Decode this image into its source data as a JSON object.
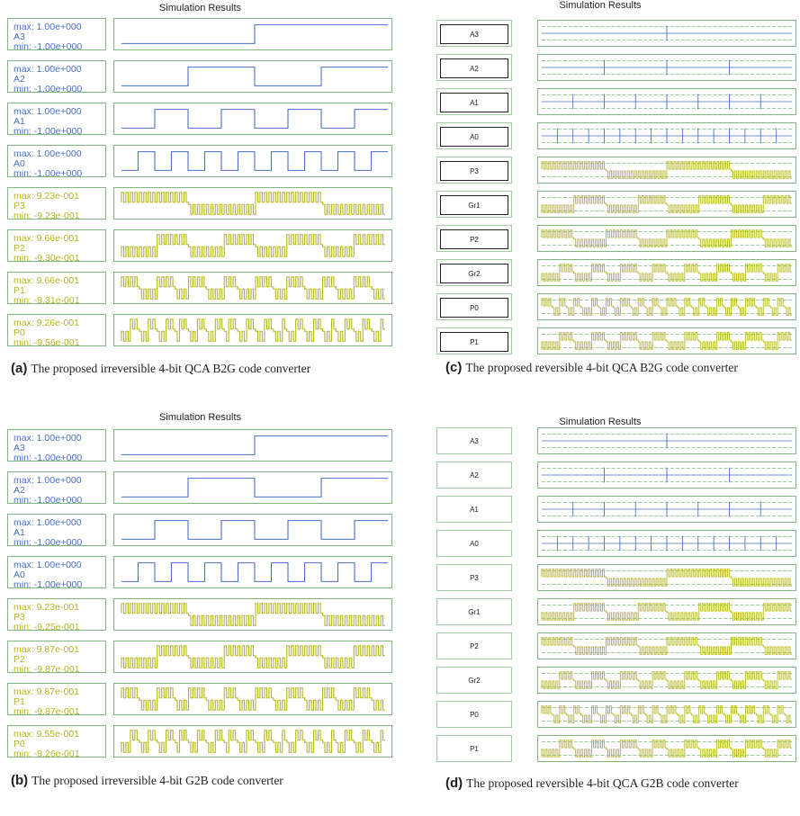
{
  "chart_data": [
    {
      "type": "line",
      "title": "Simulation Results",
      "caption_letter": "(a)",
      "caption_text": "The proposed irreversible 4-bit QCA B2G code converter",
      "signals": [
        {
          "name": "A3",
          "max": "max: 1.00e+000",
          "min": "min: -1.00e+000",
          "kind": "input",
          "color": "#4a6fc4",
          "period": 8
        },
        {
          "name": "A2",
          "max": "max: 1.00e+000",
          "min": "min: -1.00e+000",
          "kind": "input",
          "color": "#4a6fc4",
          "period": 4
        },
        {
          "name": "A1",
          "max": "max: 1.00e+000",
          "min": "min: -1.00e+000",
          "kind": "input",
          "color": "#4a6fc4",
          "period": 2
        },
        {
          "name": "A0",
          "max": "max: 1.00e+000",
          "min": "min: -1.00e+000",
          "kind": "input",
          "color": "#4a6fc4",
          "period": 1
        },
        {
          "name": "P3",
          "max": "max: 9.23e-001",
          "min": "min: -9.23e-001",
          "kind": "output",
          "color": "#b5b520",
          "period": 8
        },
        {
          "name": "P2",
          "max": "max: 9.66e-001",
          "min": "min: -9.30e-001",
          "kind": "output",
          "color": "#b5b520",
          "period": 4
        },
        {
          "name": "P1",
          "max": "max: 9.66e-001",
          "min": "min: -9.31e-001",
          "kind": "output",
          "color": "#b5b520",
          "period": 2
        },
        {
          "name": "P0",
          "max": "max: 9.26e-001",
          "min": "min: -9.56e-001",
          "kind": "output",
          "color": "#b5b520",
          "period": 1
        }
      ]
    },
    {
      "type": "line",
      "title": "Simulation Results",
      "caption_letter": "(b)",
      "caption_text": "The proposed irreversible 4-bit G2B code converter",
      "signals": [
        {
          "name": "A3",
          "max": "max: 1.00e+000",
          "min": "min: -1.00e+000",
          "kind": "input",
          "color": "#4a6fc4",
          "period": 8
        },
        {
          "name": "A2",
          "max": "max: 1.00e+000",
          "min": "min: -1.00e+000",
          "kind": "input",
          "color": "#4a6fc4",
          "period": 4
        },
        {
          "name": "A1",
          "max": "max: 1.00e+000",
          "min": "min: -1.00e+000",
          "kind": "input",
          "color": "#4a6fc4",
          "period": 2
        },
        {
          "name": "A0",
          "max": "max: 1.00e+000",
          "min": "min: -1.00e+000",
          "kind": "input",
          "color": "#4a6fc4",
          "period": 1
        },
        {
          "name": "P3",
          "max": "max: 9.23e-001",
          "min": "min: -9.25e-001",
          "kind": "output",
          "color": "#b5b520",
          "period": 8
        },
        {
          "name": "P2",
          "max": "max: 9.87e-001",
          "min": "min: -9.87e-001",
          "kind": "output",
          "color": "#b5b520",
          "period": 4
        },
        {
          "name": "P1",
          "max": "max: 9.87e-001",
          "min": "min: -9.87e-001",
          "kind": "output",
          "color": "#b5b520",
          "period": 2
        },
        {
          "name": "P0",
          "max": "max: 9.55e-001",
          "min": "min: -9.26e-001",
          "kind": "output",
          "color": "#b5b520",
          "period": 1
        }
      ]
    },
    {
      "type": "line",
      "title": "Simulation Results",
      "caption_letter": "(c)",
      "caption_text": "The proposed reversible 4-bit QCA B2G code converter",
      "signals": [
        {
          "name": "A3",
          "kind": "input",
          "color": "#4a6fc4",
          "period": 8
        },
        {
          "name": "A2",
          "kind": "input",
          "color": "#4a6fc4",
          "period": 4
        },
        {
          "name": "A1",
          "kind": "input",
          "color": "#4a6fc4",
          "period": 2
        },
        {
          "name": "A0",
          "kind": "input",
          "color": "#4a6fc4",
          "period": 1
        },
        {
          "name": "P3",
          "kind": "output",
          "color": "#b5b520",
          "period": 8
        },
        {
          "name": "Gr1",
          "kind": "output",
          "color": "#b5b520",
          "period": 4
        },
        {
          "name": "P2",
          "kind": "output",
          "color": "#b5b520",
          "period": 4
        },
        {
          "name": "Gr2",
          "kind": "output",
          "color": "#b5b520",
          "period": 2
        },
        {
          "name": "P0",
          "kind": "output",
          "color": "#b5b520",
          "period": 1
        },
        {
          "name": "P1",
          "kind": "output",
          "color": "#b5b520",
          "period": 2
        }
      ]
    },
    {
      "type": "line",
      "title": "Simulation Results",
      "caption_letter": "(d)",
      "caption_text": "The proposed reversible 4-bit QCA G2B code converter",
      "signals": [
        {
          "name": "A3",
          "kind": "input",
          "color": "#4a6fc4",
          "period": 8
        },
        {
          "name": "A2",
          "kind": "input",
          "color": "#4a6fc4",
          "period": 4
        },
        {
          "name": "A1",
          "kind": "input",
          "color": "#4a6fc4",
          "period": 2
        },
        {
          "name": "A0",
          "kind": "input",
          "color": "#4a6fc4",
          "period": 1
        },
        {
          "name": "P3",
          "kind": "output",
          "color": "#b5b520",
          "period": 8
        },
        {
          "name": "Gr1",
          "kind": "output",
          "color": "#b5b520",
          "period": 4
        },
        {
          "name": "P2",
          "kind": "output",
          "color": "#b5b520",
          "period": 4
        },
        {
          "name": "Gr2",
          "kind": "output",
          "color": "#b5b520",
          "period": 2
        },
        {
          "name": "P0",
          "kind": "output",
          "color": "#b5b520",
          "period": 1
        },
        {
          "name": "P1",
          "kind": "output",
          "color": "#b5b520",
          "period": 2
        }
      ]
    }
  ]
}
